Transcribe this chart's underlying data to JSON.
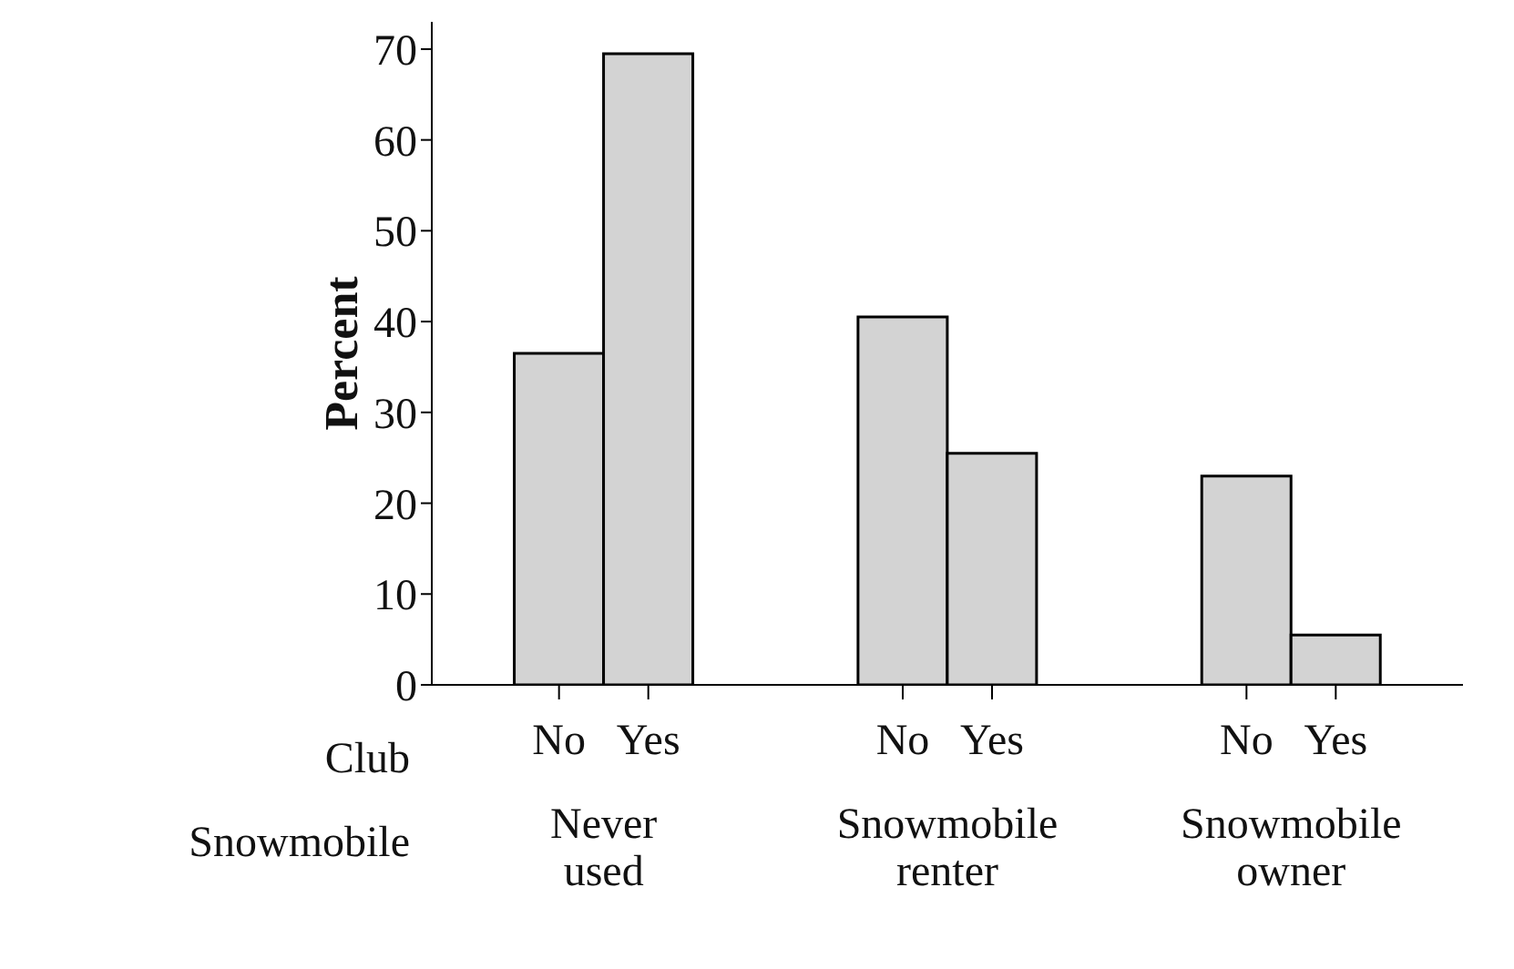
{
  "chart_data": {
    "type": "bar",
    "ylabel": "Percent",
    "xlabel": "Snowmobile",
    "legend_title": "Club",
    "categories": [
      "Never used",
      "Snowmobile renter",
      "Snowmobile owner"
    ],
    "series": [
      {
        "name": "No",
        "color": "#d3d3d3",
        "values": [
          36.5,
          40.5,
          23
        ]
      },
      {
        "name": "Yes",
        "color": "#d3d3d3",
        "values": [
          69.5,
          25.5,
          5.5
        ]
      }
    ],
    "ylim": [
      0,
      73
    ],
    "yticks": [
      0,
      10,
      20,
      30,
      40,
      50,
      60,
      70
    ],
    "legend": "bottom"
  }
}
